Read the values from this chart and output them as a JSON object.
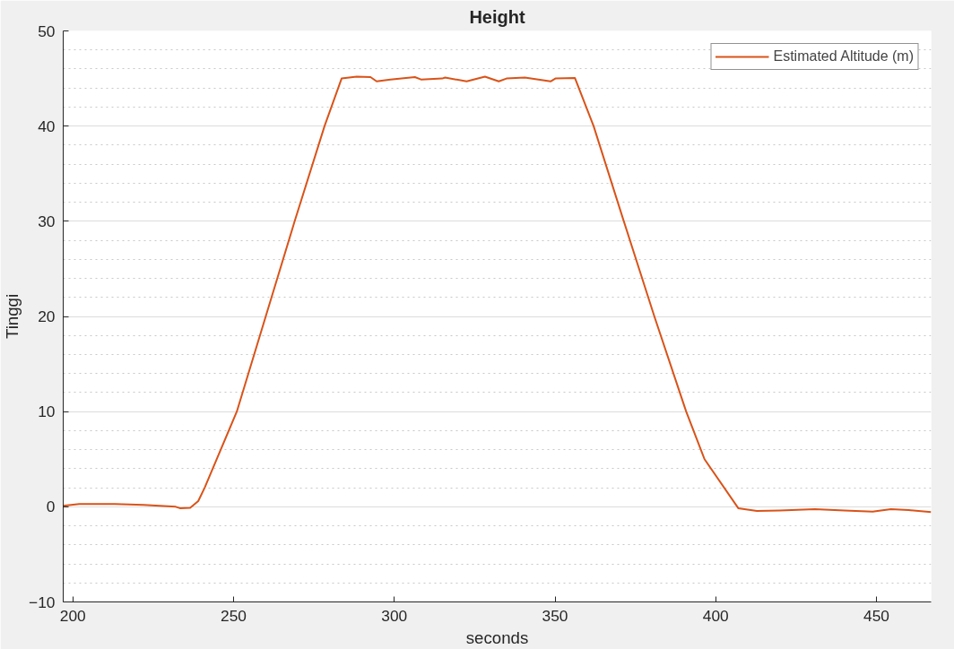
{
  "chart_data": {
    "type": "line",
    "title": "Height",
    "xlabel": "seconds",
    "ylabel": "Tinggi",
    "xlim": [
      197,
      467
    ],
    "xticks": [
      200,
      250,
      300,
      350,
      400,
      450
    ],
    "ylim": [
      -10,
      50
    ],
    "yticks": [
      -10,
      0,
      10,
      20,
      30,
      40,
      50
    ],
    "grid": "y",
    "legend": "top right",
    "line_style": "solid",
    "marker": "none",
    "series": [
      {
        "name": "Estimated Altitude (m)",
        "color": "#d95319",
        "x": [
          197,
          202,
          213,
          222,
          232,
          233.3,
          236.5,
          239,
          241,
          251,
          260,
          269,
          278.3,
          283.6,
          288.3,
          292.6,
          294.5,
          298.8,
          306.4,
          308.3,
          314.9,
          315.8,
          322.5,
          328.2,
          332.5,
          334.9,
          340.6,
          348.6,
          350.1,
          356.2,
          362,
          371.4,
          380.9,
          390.8,
          396.5,
          407,
          412.8,
          420,
          430.8,
          440,
          448.8,
          454.5,
          460,
          467
        ],
        "values": [
          0.1,
          0.3,
          0.3,
          0.2,
          0.0,
          -0.15,
          -0.1,
          0.6,
          2,
          10,
          20,
          30,
          40,
          45.0,
          45.2,
          45.15,
          44.7,
          44.9,
          45.15,
          44.9,
          45.0,
          45.1,
          44.7,
          45.2,
          44.7,
          45.0,
          45.1,
          44.7,
          45.0,
          45.05,
          40,
          30,
          20,
          10,
          5.0,
          -0.15,
          -0.45,
          -0.4,
          -0.25,
          -0.4,
          -0.5,
          -0.25,
          -0.35,
          -0.55
        ]
      }
    ]
  }
}
